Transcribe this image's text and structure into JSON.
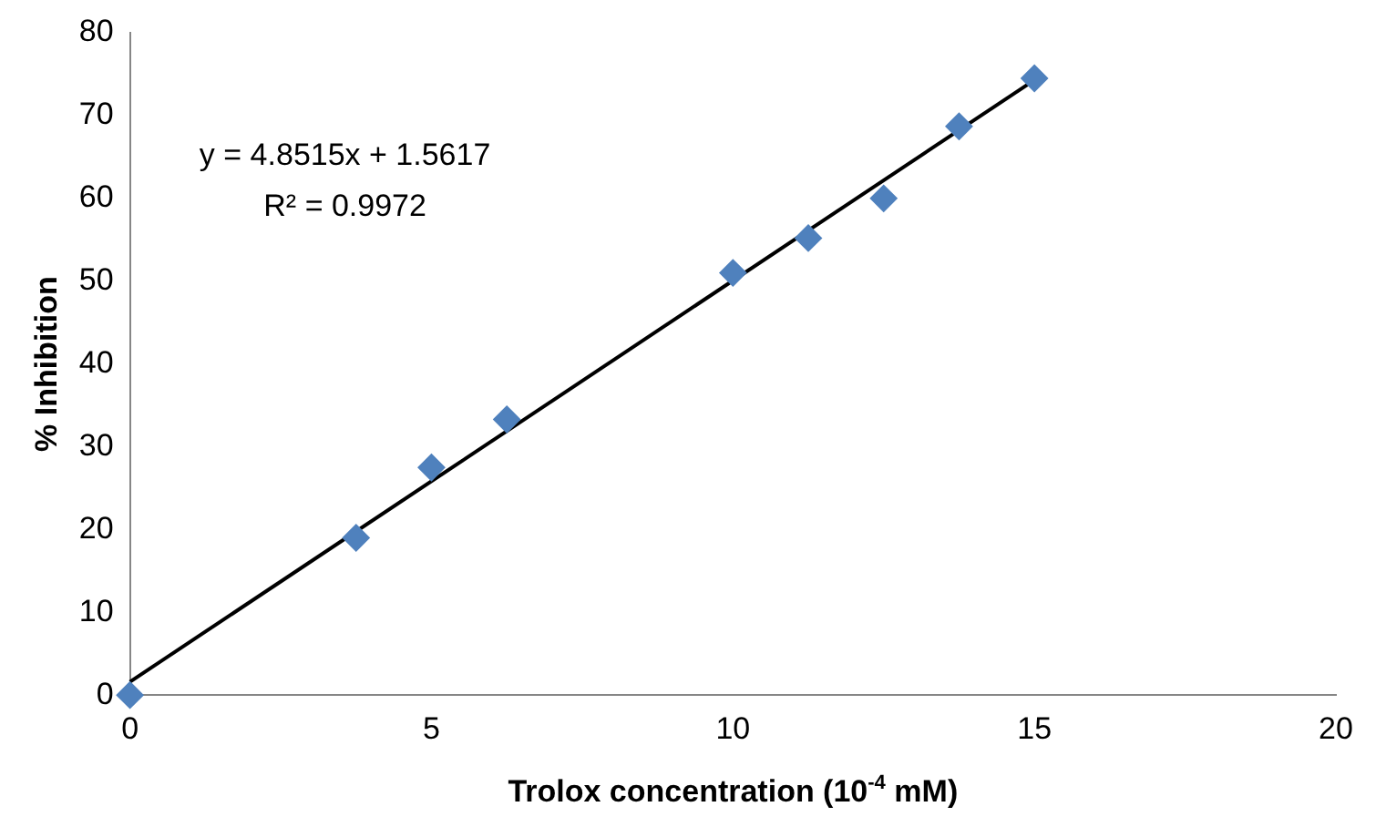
{
  "chart_data": {
    "type": "scatter",
    "xlabel": "Trolox concentration (10$^{-4}$ mM)",
    "ylabel": "% Inhibition",
    "x": [
      0,
      3.75,
      5,
      6.25,
      10,
      11.25,
      12.5,
      13.75,
      15
    ],
    "series": [
      {
        "type": "scatter",
        "color": "#4f81bd",
        "marker": "diamond",
        "values": [
          0,
          19,
          27.5,
          33.3,
          51,
          55.2,
          60,
          68.7,
          74.5
        ]
      },
      {
        "type": "line",
        "color": "#000000",
        "marker": "none",
        "line_style": "solid",
        "x": [
          0,
          15
        ],
        "values": [
          1.6,
          74.3
        ]
      }
    ],
    "xlim": [
      0,
      20
    ],
    "xticks": [
      0,
      5,
      10,
      15,
      20
    ],
    "ylim": [
      0,
      80
    ],
    "yticks": [
      0,
      10,
      20,
      30,
      40,
      50,
      60,
      70,
      80
    ],
    "grid": false,
    "legend": false,
    "annotations": [
      "y = 4.8515x + 1.5617",
      "R² = 0.9972"
    ]
  }
}
